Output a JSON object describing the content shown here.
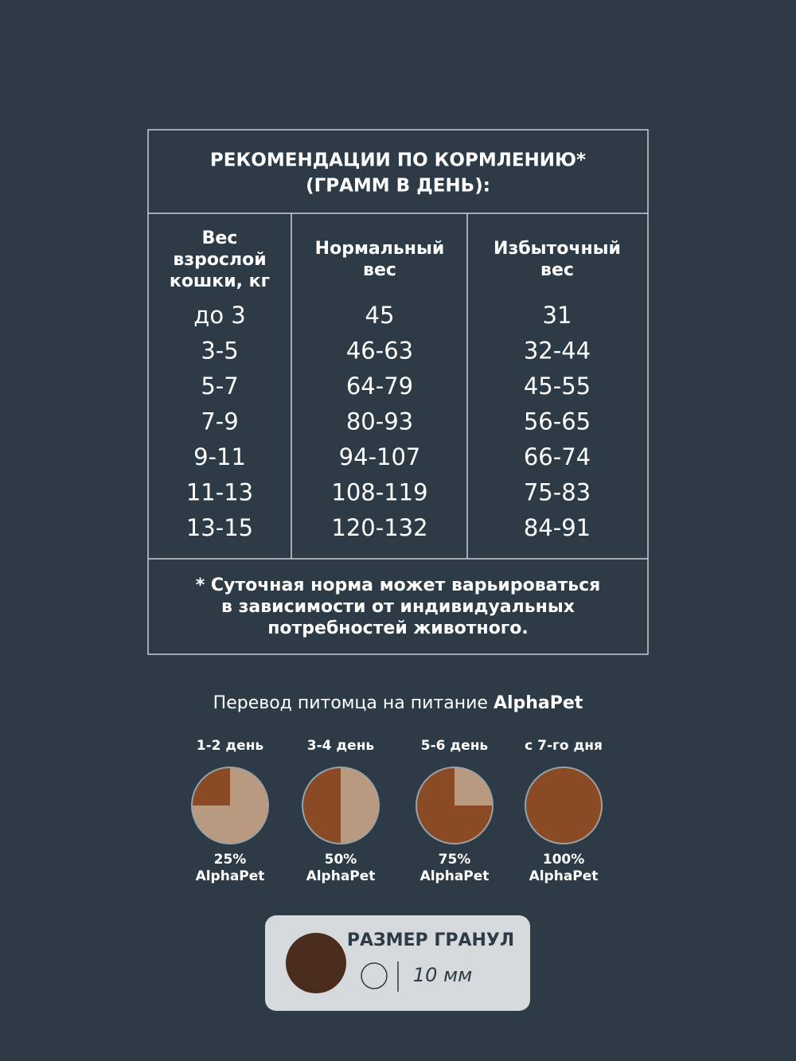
{
  "table": {
    "title_lines": [
      "РЕКОМЕНДАЦИИ ПО КОРМЛЕНИЮ*",
      "(ГРАММ В ДЕНЬ):"
    ],
    "headers": [
      [
        "Вес",
        "взрослой",
        "кошки, кг"
      ],
      [
        "Нормальный",
        "вес"
      ],
      [
        "Избыточный",
        "вес"
      ]
    ],
    "rows": [
      [
        "до 3",
        "45",
        "31"
      ],
      [
        "3-5",
        "46-63",
        "32-44"
      ],
      [
        "5-7",
        "64-79",
        "45-55"
      ],
      [
        "7-9",
        "80-93",
        "56-65"
      ],
      [
        "9-11",
        "94-107",
        "66-74"
      ],
      [
        "11-13",
        "108-119",
        "75-83"
      ],
      [
        "13-15",
        "120-132",
        "84-91"
      ]
    ],
    "footnote_lines": [
      "* Суточная норма может варьироваться",
      "в зависимости от индивидуальных",
      "потребностей животного."
    ]
  },
  "transition": {
    "title": "Перевод питомца на питание",
    "brand": "AlphaPet",
    "steps": [
      {
        "label": "1-2 день",
        "share": 25,
        "share_label": "25%",
        "brand": "AlphaPet"
      },
      {
        "label": "3-4 день",
        "share": 50,
        "share_label": "50%",
        "brand": "AlphaPet"
      },
      {
        "label": "5-6 день",
        "share": 75,
        "share_label": "75%",
        "brand": "AlphaPet"
      },
      {
        "label": "с 7-го дня",
        "share": 100,
        "share_label": "100%",
        "brand": "AlphaPet"
      }
    ]
  },
  "granule": {
    "title": "РАЗМЕР ГРАНУЛ",
    "size": "10 мм"
  }
}
